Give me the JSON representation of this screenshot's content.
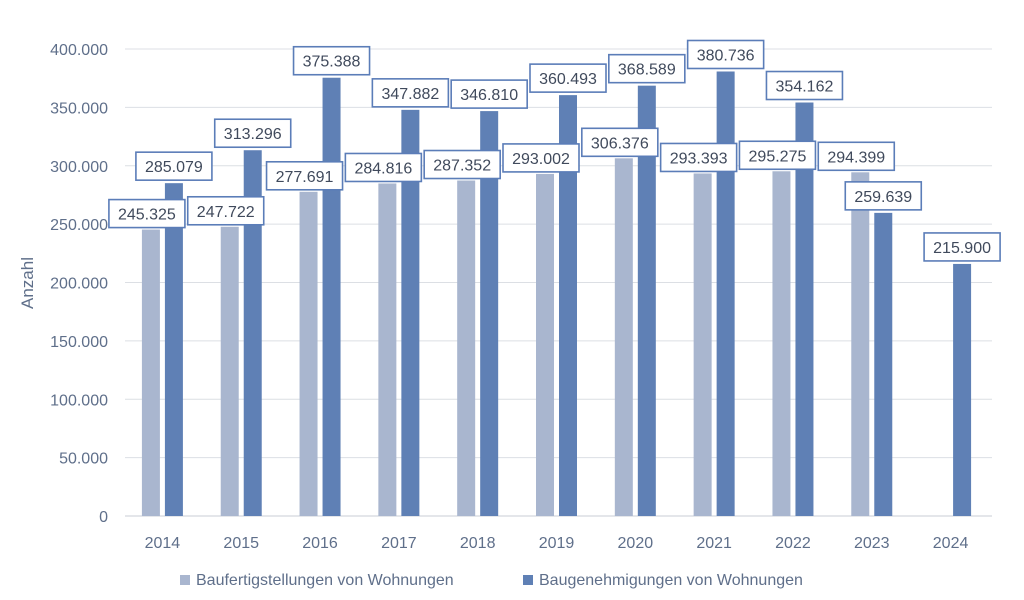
{
  "chart_data": {
    "type": "bar",
    "title": "",
    "xlabel": "",
    "ylabel": "Anzahl",
    "ylim": [
      0,
      400000
    ],
    "yticks": [
      0,
      50000,
      100000,
      150000,
      200000,
      250000,
      300000,
      350000,
      400000
    ],
    "ytick_labels": [
      "0",
      "50.000",
      "100.000",
      "150.000",
      "200.000",
      "250.000",
      "300.000",
      "350.000",
      "400.000"
    ],
    "categories": [
      "2014",
      "2015",
      "2016",
      "2017",
      "2018",
      "2019",
      "2020",
      "2021",
      "2022",
      "2023",
      "2024"
    ],
    "grid": true,
    "legend_position": "bottom",
    "series": [
      {
        "name": "Baufertigstellungen von Wohnungen",
        "color": "#a9b6cf",
        "values": [
          245325,
          247722,
          277691,
          284816,
          287352,
          293002,
          306376,
          293393,
          295275,
          294399,
          null
        ],
        "labels": [
          "245.325",
          "247.722",
          "277.691",
          "284.816",
          "287.352",
          "293.002",
          "306.376",
          "293.393",
          "295.275",
          "294.399",
          null
        ]
      },
      {
        "name": "Baugenehmigungen von Wohnungen",
        "color": "#5f80b5",
        "values": [
          285079,
          313296,
          375388,
          347882,
          346810,
          360493,
          368589,
          380736,
          354162,
          259639,
          215900
        ],
        "labels": [
          "285.079",
          "313.296",
          "375.388",
          "347.882",
          "346.810",
          "360.493",
          "368.589",
          "380.736",
          "354.162",
          "259.639",
          "215.900"
        ]
      }
    ]
  }
}
